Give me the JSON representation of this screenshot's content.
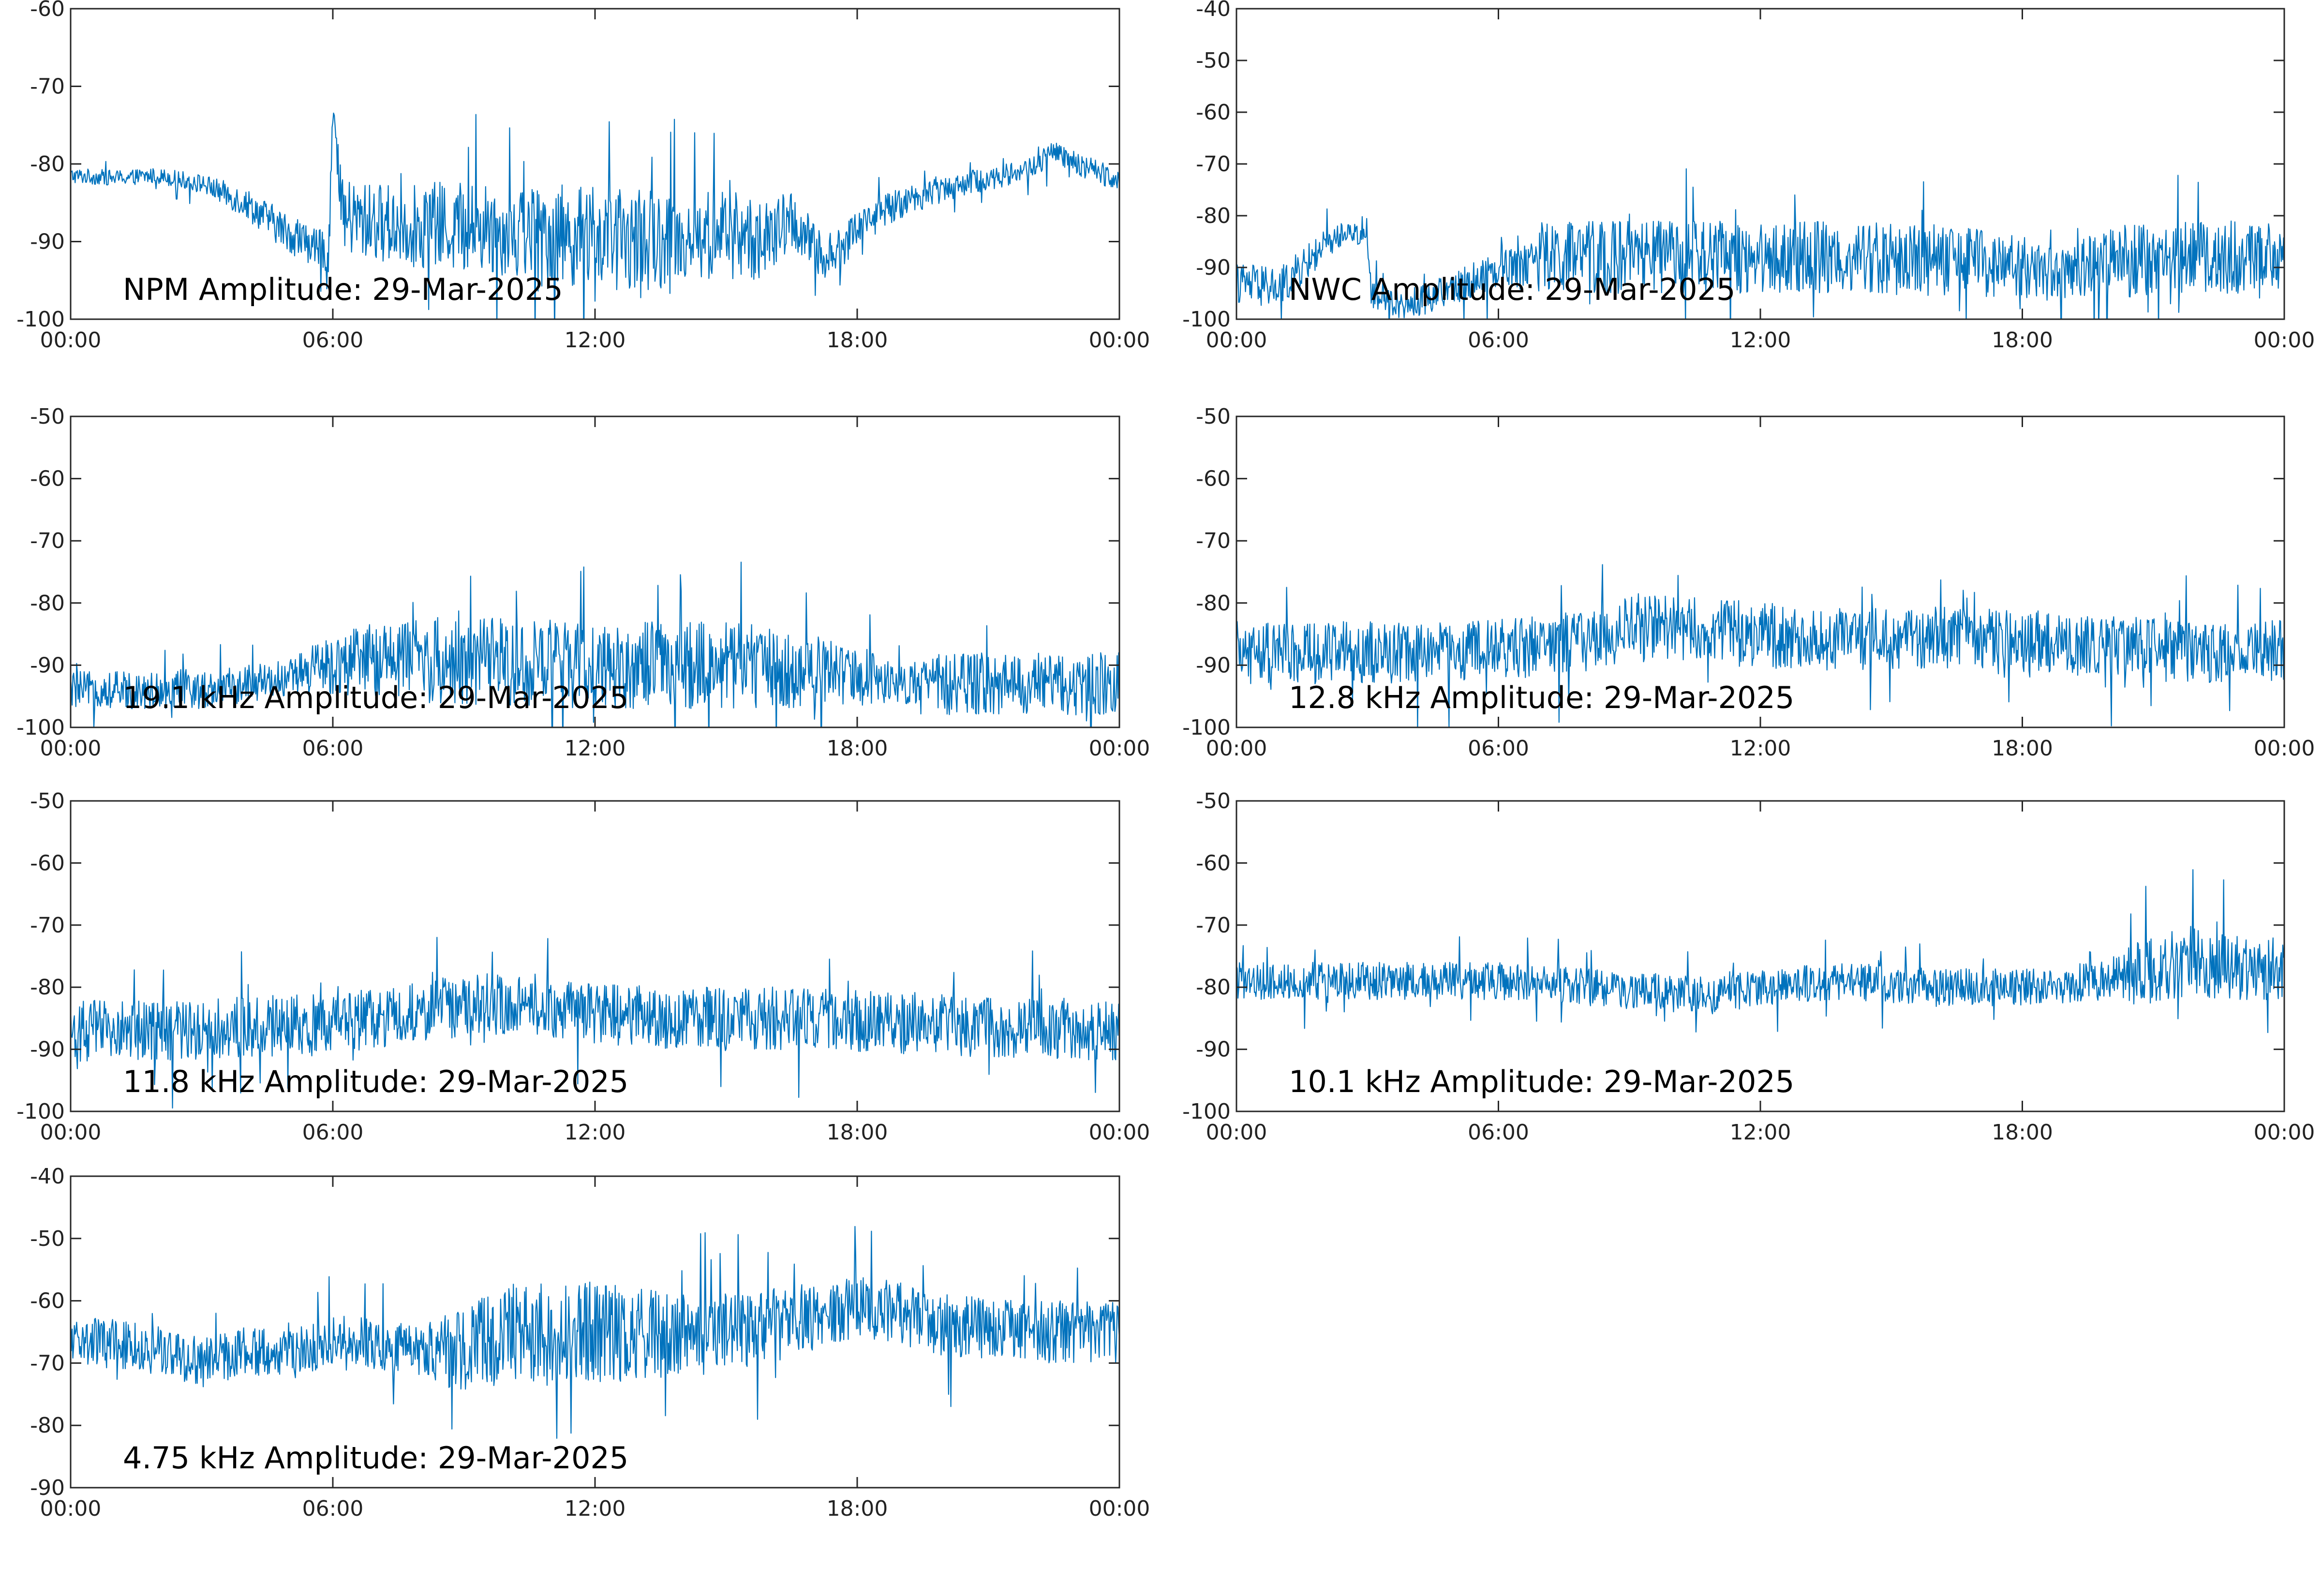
{
  "trace_color": "#0072BD",
  "chart_data": [
    {
      "type": "line",
      "title": "NPM Amplitude: 29-Mar-2025",
      "x_tick_labels": [
        "00:00",
        "06:00",
        "12:00",
        "18:00",
        "00:00"
      ],
      "ylim": [
        -100,
        -60
      ],
      "y_ticks": [
        -60,
        -70,
        -80,
        -90,
        -100
      ],
      "x_hours": [
        0,
        1,
        2,
        3,
        4,
        5,
        5.9,
        6.0,
        6.2,
        7,
        8,
        9,
        10,
        11,
        12,
        13,
        14,
        15,
        16,
        16.5,
        17,
        17.5,
        18,
        19,
        20,
        21,
        22,
        22.5,
        23,
        24
      ],
      "y": [
        -81.5,
        -81.8,
        -81.5,
        -82.5,
        -85,
        -89,
        -91.5,
        -74,
        -87,
        -87.5,
        -88,
        -88,
        -88.5,
        -89,
        -89.5,
        -90,
        -89.5,
        -89,
        -90,
        -87,
        -91,
        -92,
        -88,
        -85,
        -83,
        -82,
        -80.5,
        -78.5,
        -80,
        -82
      ],
      "spread": [
        1,
        1,
        1,
        1.2,
        2,
        2.5,
        2.5,
        6,
        5,
        5,
        5.5,
        6,
        6,
        6.5,
        6.5,
        6.5,
        6,
        6,
        5,
        4,
        3.5,
        3,
        2.5,
        2,
        1.8,
        1.5,
        1.5,
        1.5,
        1.5,
        1.5
      ]
    },
    {
      "type": "line",
      "title": "NWC Amplitude: 29-Mar-2025",
      "x_tick_labels": [
        "00:00",
        "06:00",
        "12:00",
        "18:00",
        "00:00"
      ],
      "ylim": [
        -100,
        -40
      ],
      "y_ticks": [
        -40,
        -50,
        -60,
        -70,
        -80,
        -90,
        -100
      ],
      "x_hours": [
        0,
        1,
        2,
        2.5,
        3.0,
        3.1,
        4,
        5,
        6,
        7,
        8,
        10,
        12,
        14,
        16,
        18,
        19,
        20,
        22,
        24
      ],
      "y": [
        -93,
        -94,
        -86,
        -83,
        -84,
        -96,
        -97,
        -94,
        -90,
        -88,
        -88,
        -88,
        -88,
        -88,
        -88.5,
        -90,
        -91,
        -89,
        -88,
        -88
      ],
      "spread": [
        4,
        4,
        3,
        2,
        2,
        3,
        3,
        3,
        4,
        7,
        7,
        7,
        7,
        7,
        7,
        6,
        5,
        7,
        7,
        7
      ]
    },
    {
      "type": "line",
      "title": "19.1 kHz Amplitude: 29-Mar-2025",
      "x_tick_labels": [
        "00:00",
        "06:00",
        "12:00",
        "18:00",
        "00:00"
      ],
      "ylim": [
        -100,
        -50
      ],
      "y_ticks": [
        -50,
        -60,
        -70,
        -80,
        -90,
        -100
      ],
      "x_hours": [
        0,
        1,
        2,
        3,
        4,
        5,
        6,
        7,
        8,
        10,
        12,
        14,
        16,
        18,
        19,
        20,
        22,
        24
      ],
      "y": [
        -94,
        -94,
        -94,
        -94,
        -93,
        -92,
        -90,
        -89,
        -89,
        -89.5,
        -90,
        -90,
        -90,
        -91.5,
        -93,
        -93,
        -93,
        -93
      ],
      "spread": [
        3,
        3,
        3,
        3,
        3,
        3,
        5,
        6,
        7,
        7,
        7,
        7,
        7,
        5,
        3,
        5,
        5,
        5
      ]
    },
    {
      "type": "line",
      "title": "12.8 kHz Amplitude: 29-Mar-2025",
      "x_tick_labels": [
        "00:00",
        "06:00",
        "12:00",
        "18:00",
        "00:00"
      ],
      "ylim": [
        -100,
        -50
      ],
      "y_ticks": [
        -50,
        -60,
        -70,
        -80,
        -90,
        -100
      ],
      "x_hours": [
        0,
        2,
        4,
        6,
        8,
        9,
        10,
        12,
        14,
        16,
        18,
        20,
        22,
        24
      ],
      "y": [
        -88,
        -88,
        -88,
        -87.5,
        -86,
        -84,
        -84,
        -85,
        -86,
        -85.5,
        -86,
        -87,
        -88,
        -87.5
      ],
      "spread": [
        5,
        5,
        5,
        5,
        5,
        5.5,
        5.5,
        5.5,
        5,
        5,
        5,
        5,
        5,
        5
      ]
    },
    {
      "type": "line",
      "title": "11.8 kHz Amplitude: 29-Mar-2025",
      "x_tick_labels": [
        "00:00",
        "06:00",
        "12:00",
        "18:00",
        "00:00"
      ],
      "ylim": [
        -100,
        -50
      ],
      "y_ticks": [
        -50,
        -60,
        -70,
        -80,
        -90,
        -100
      ],
      "x_hours": [
        0,
        2,
        4,
        6,
        8,
        9,
        10,
        11,
        12,
        14,
        16,
        18,
        20,
        22,
        24
      ],
      "y": [
        -87,
        -87,
        -86.5,
        -86,
        -84,
        -83,
        -82.5,
        -83,
        -84.5,
        -85,
        -85,
        -85.5,
        -86,
        -86.5,
        -87
      ],
      "spread": [
        5,
        5,
        5,
        5,
        5,
        5,
        5,
        5,
        5,
        5,
        5,
        5,
        5,
        5,
        5
      ]
    },
    {
      "type": "line",
      "title": "10.1 kHz Amplitude: 29-Mar-2025",
      "x_tick_labels": [
        "00:00",
        "06:00",
        "12:00",
        "18:00",
        "00:00"
      ],
      "ylim": [
        -100,
        -50
      ],
      "y_ticks": [
        -50,
        -60,
        -70,
        -80,
        -90,
        -100
      ],
      "x_hours": [
        0,
        2,
        4,
        6,
        8,
        10,
        11,
        12,
        14,
        16,
        18,
        19,
        20,
        21,
        22,
        23,
        24
      ],
      "y": [
        -79,
        -79,
        -79,
        -79,
        -80,
        -81,
        -81.5,
        -80,
        -79,
        -80,
        -80,
        -79.5,
        -79,
        -77,
        -76,
        -77,
        -77
      ],
      "spread": [
        3,
        3,
        3,
        3,
        3,
        3,
        3,
        3,
        3,
        3,
        3,
        3,
        3.5,
        6,
        6,
        5,
        5
      ]
    },
    {
      "type": "line",
      "title": "4.75 kHz Amplitude: 29-Mar-2025",
      "x_tick_labels": [
        "00:00",
        "06:00",
        "12:00",
        "18:00",
        "00:00"
      ],
      "ylim": [
        -90,
        -40
      ],
      "y_ticks": [
        -40,
        -50,
        -60,
        -70,
        -80,
        -90
      ],
      "x_hours": [
        0,
        2,
        3,
        4,
        5,
        6,
        8,
        9,
        10,
        12,
        14,
        16,
        18,
        19,
        20,
        22,
        24
      ],
      "y": [
        -66,
        -68,
        -70,
        -68,
        -69,
        -66,
        -68,
        -68,
        -65,
        -65,
        -66,
        -64,
        -61,
        -62,
        -64,
        -65,
        -65
      ],
      "spread": [
        4,
        4,
        4,
        4,
        4,
        4,
        4,
        7,
        8,
        8,
        7,
        6,
        5,
        5,
        5,
        5,
        5
      ]
    }
  ]
}
